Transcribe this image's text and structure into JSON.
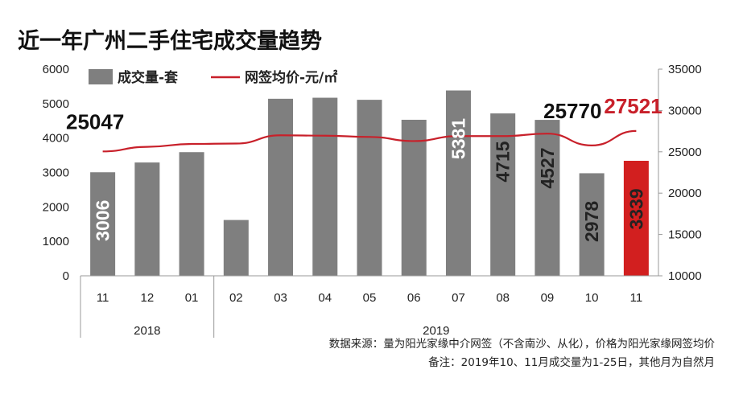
{
  "chart_data": {
    "type": "bar",
    "title": "近一年广州二手住宅成交量趋势",
    "categories": [
      "11",
      "12",
      "01",
      "02",
      "03",
      "04",
      "05",
      "06",
      "07",
      "08",
      "09",
      "10",
      "11"
    ],
    "year_groups": [
      {
        "label": "2018",
        "start": 0,
        "end": 2
      },
      {
        "label": "2019",
        "start": 3,
        "end": 12
      }
    ],
    "series": [
      {
        "name": "成交量-套",
        "type": "bar",
        "axis": "left",
        "color": "#7f7f7f",
        "highlight_color": "#d21f1f",
        "highlight_index": 12,
        "values": [
          3006,
          3290,
          3590,
          1620,
          5140,
          5170,
          5110,
          4530,
          5381,
          4715,
          4527,
          2978,
          3339
        ],
        "data_labels": [
          {
            "index": 0,
            "text": "3006",
            "color": "#ffffff"
          },
          {
            "index": 8,
            "text": "5381",
            "color": "#ffffff"
          },
          {
            "index": 9,
            "text": "4715",
            "color": "#222222"
          },
          {
            "index": 10,
            "text": "4527",
            "color": "#222222"
          },
          {
            "index": 11,
            "text": "2978",
            "color": "#222222"
          },
          {
            "index": 12,
            "text": "3339",
            "color": "#222222"
          }
        ]
      },
      {
        "name": "网签均价-元/㎡",
        "type": "line",
        "axis": "right",
        "color": "#c8202a",
        "values": [
          25047,
          25600,
          25950,
          26000,
          27000,
          26950,
          26800,
          26300,
          26900,
          26900,
          27200,
          25770,
          27521
        ],
        "data_labels": [
          {
            "index": 0,
            "text": "25047",
            "color": "#111111"
          },
          {
            "index": 11,
            "text": "25770",
            "color": "#111111"
          },
          {
            "index": 12,
            "text": "27521",
            "color": "#c8202a"
          }
        ]
      }
    ],
    "y_left": {
      "min": 0,
      "max": 6000,
      "step": 1000,
      "ticks": [
        "0",
        "1000",
        "2000",
        "3000",
        "4000",
        "5000",
        "6000"
      ]
    },
    "y_right": {
      "min": 10000,
      "max": 35000,
      "step": 5000,
      "ticks": [
        "10000",
        "15000",
        "20000",
        "25000",
        "30000",
        "35000"
      ]
    },
    "legend": {
      "position": "top-left"
    },
    "grid": false,
    "notes": [
      "数据来源：量为阳光家缘中介网签（不含南沙、从化），价格为阳光家缘网签均价",
      "备注：2019年10、11月成交量为1-25日，其他月为自然月"
    ]
  }
}
